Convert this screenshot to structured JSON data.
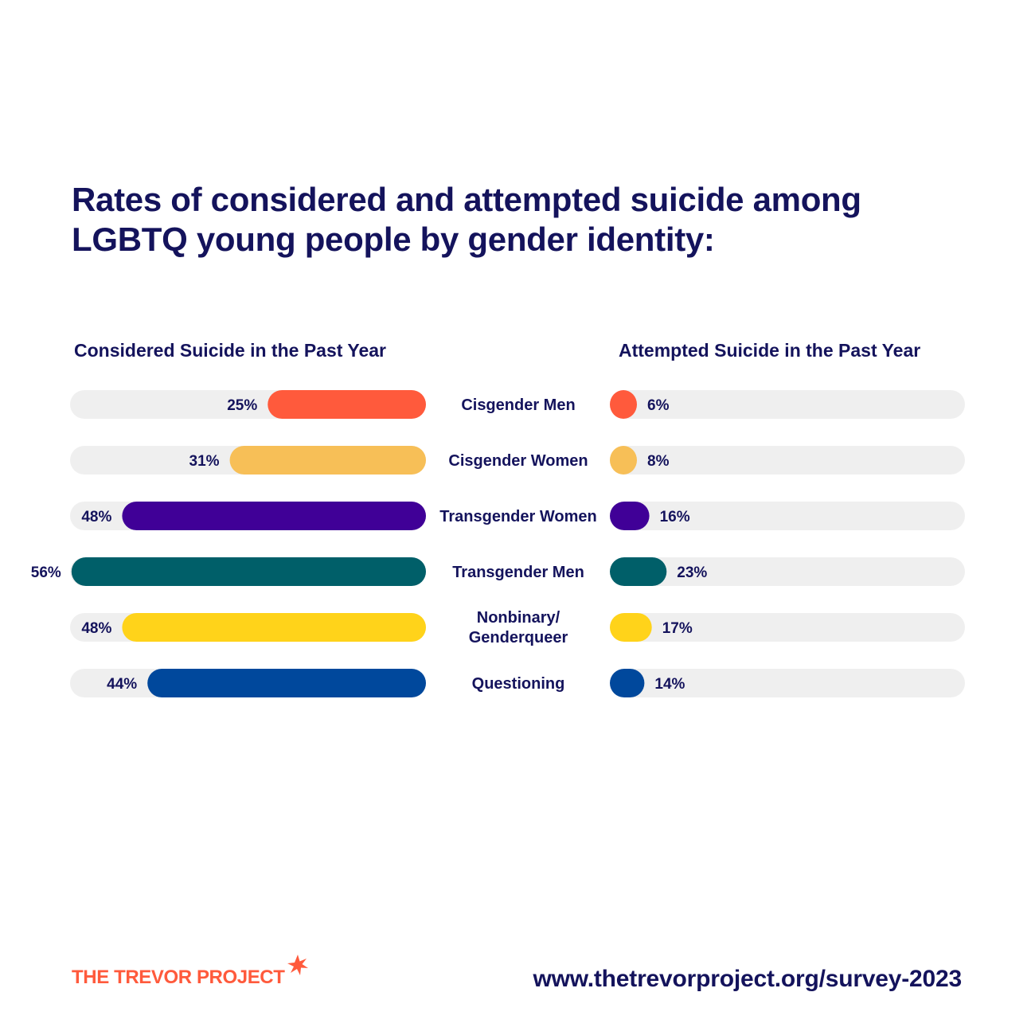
{
  "title": {
    "line1": "Rates of considered and attempted suicide among",
    "line2": "LGBTQ young people by gender identity:"
  },
  "brand": {
    "name": "THE TREVOR PROJECT",
    "logo_icon": "star-burst-icon",
    "url": "www.thetrevorproject.org/survey-2023"
  },
  "colors": {
    "navy": "#14135c",
    "track": "#efefef",
    "brand_orange": "#ff5a3c"
  },
  "chart_data": {
    "type": "bar",
    "orientation": "horizontal-butterfly",
    "categories": [
      "Cisgender Men",
      "Cisgender Women",
      "Transgender Women",
      "Transgender Men",
      "Nonbinary/ Genderqueer",
      "Questioning"
    ],
    "category_colors": [
      "#ff5a3c",
      "#f7bf57",
      "#400097",
      "#005f69",
      "#ffd31a",
      "#00489c"
    ],
    "xlim": [
      0,
      100
    ],
    "value_suffix": "%",
    "grid": false,
    "series": [
      {
        "name": "Considered Suicide in the Past Year",
        "direction": "left",
        "values": [
          25,
          31,
          48,
          56,
          48,
          44
        ]
      },
      {
        "name": "Attempted Suicide in the Past Year",
        "direction": "right",
        "values": [
          6,
          8,
          16,
          23,
          17,
          14
        ]
      }
    ]
  }
}
